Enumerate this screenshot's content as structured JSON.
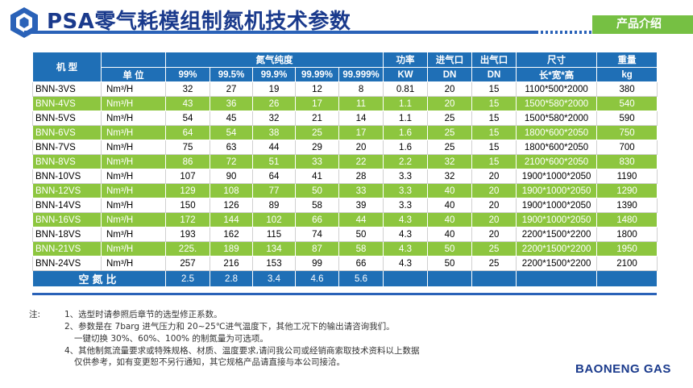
{
  "title": "PSA零气耗模组制氮机技术参数",
  "badge": "产品介绍",
  "brand": "BAONENG GAS",
  "header1": [
    "机  型",
    "氮气纯度",
    "功率",
    "进气口",
    "出气口",
    "尺寸",
    "重量"
  ],
  "header2": [
    "单 位",
    "99%",
    "99.5%",
    "99.9%",
    "99.99%",
    "99.999%",
    "KW",
    "DN",
    "DN",
    "长*宽*高",
    "kg"
  ],
  "rows": [
    [
      "BNN-3VS",
      "Nm³/H",
      "32",
      "27",
      "19",
      "12",
      "8",
      "0.81",
      "20",
      "15",
      "1100*500*2000",
      "380"
    ],
    [
      "BNN-4VS",
      "Nm³/H",
      "43",
      "36",
      "26",
      "17",
      "11",
      "1.1",
      "20",
      "15",
      "1500*580*2000",
      "540"
    ],
    [
      "BNN-5VS",
      "Nm³/H",
      "54",
      "45",
      "32",
      "21",
      "14",
      "1.1",
      "25",
      "15",
      "1500*580*2000",
      "590"
    ],
    [
      "BNN-6VS",
      "Nm³/H",
      "64",
      "54",
      "38",
      "25",
      "17",
      "1.6",
      "25",
      "15",
      "1800*600*2050",
      "750"
    ],
    [
      "BNN-7VS",
      "Nm³/H",
      "75",
      "63",
      "44",
      "29",
      "20",
      "1.6",
      "25",
      "15",
      "1800*600*2050",
      "700"
    ],
    [
      "BNN-8VS",
      "Nm³/H",
      "86",
      "72",
      "51",
      "33",
      "22",
      "2.2",
      "32",
      "15",
      "2100*600*2050",
      "830"
    ],
    [
      "BNN-10VS",
      "Nm³/H",
      "107",
      "90",
      "64",
      "41",
      "28",
      "3.3",
      "32",
      "20",
      "1900*1000*2050",
      "1190"
    ],
    [
      "BNN-12VS",
      "Nm³/H",
      "129",
      "108",
      "77",
      "50",
      "33",
      "3.3",
      "40",
      "20",
      "1900*1000*2050",
      "1290"
    ],
    [
      "BNN-14VS",
      "Nm³/H",
      "150",
      "126",
      "89",
      "58",
      "39",
      "3.3",
      "40",
      "20",
      "1900*1000*2050",
      "1390"
    ],
    [
      "BNN-16VS",
      "Nm³/H",
      "172",
      "144",
      "102",
      "66",
      "44",
      "4.3",
      "40",
      "20",
      "1900*1000*2050",
      "1480"
    ],
    [
      "BNN-18VS",
      "Nm³/H",
      "193",
      "162",
      "115",
      "74",
      "50",
      "4.3",
      "40",
      "20",
      "2200*1500*2200",
      "1800"
    ],
    [
      "BNN-21VS",
      "Nm³/H",
      "225.",
      "189",
      "134",
      "87",
      "58",
      "4.3",
      "50",
      "25",
      "2200*1500*2200",
      "1950"
    ],
    [
      "BNN-24VS",
      "Nm³/H",
      "257",
      "216",
      "153",
      "99",
      "66",
      "4.3",
      "50",
      "25",
      "2200*1500*2200",
      "2100"
    ]
  ],
  "ratio": {
    "label": "空氮比",
    "values": [
      "2.5",
      "2.8",
      "3.4",
      "4.6",
      "5.6"
    ]
  },
  "notes": {
    "label": "注:",
    "lines": [
      "1、选型时请参照后章节的选型修正系数。",
      "2、参数是在 7barg 进气压力和 20~25℃进气温度下，其他工况下的输出请咨询我们。",
      "一键切换 30%、60%、100% 的制氮量为可选项。",
      "4、其他制氮流量要求或特殊规格、材质、温度要求,请问我公司或经销商索取技术资料以上数据",
      "仅供参考，如有变更恕不另行通知，其它规格产品请直接与本公司接洽。"
    ]
  }
}
